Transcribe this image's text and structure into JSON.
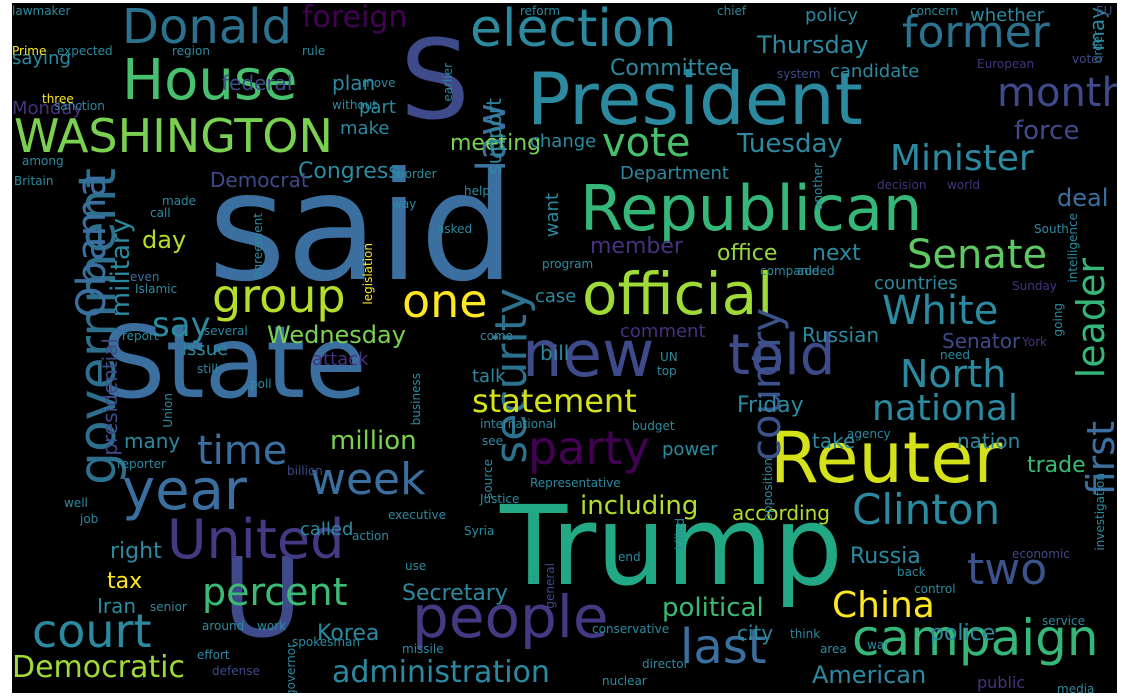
{
  "wordcloud": {
    "colors": {
      "background": "#000000",
      "purple": "#46327e",
      "deep_purple": "#440154",
      "indigo": "#3b528b",
      "blue": "#365c8d",
      "steel": "#2c728e",
      "teal": "#21918c",
      "cyan": "#1fa187",
      "green": "#3bbb75",
      "lime": "#5ec962",
      "light_green": "#95d840",
      "yellow": "#fde725"
    },
    "words": [
      {
        "text": "said",
        "color": "#3b6fa0"
      },
      {
        "text": "Trump",
        "color": "#22a884"
      },
      {
        "text": "State",
        "color": "#3b6fa0"
      },
      {
        "text": "President",
        "color": "#2c8aa0"
      },
      {
        "text": "Republican",
        "color": "#35b779"
      },
      {
        "text": "Reuter",
        "color": "#d5e21a"
      },
      {
        "text": "S",
        "color": "#3e4a89"
      },
      {
        "text": "U",
        "color": "#3e4a89"
      },
      {
        "text": "official",
        "color": "#a0da39"
      },
      {
        "text": "government",
        "color": "#2d708e"
      },
      {
        "text": "new",
        "color": "#3e4a89"
      },
      {
        "text": "year",
        "color": "#3b6fa0"
      },
      {
        "text": "people",
        "color": "#443983"
      },
      {
        "text": "United",
        "color": "#443983"
      },
      {
        "text": "election",
        "color": "#2d8a9e"
      },
      {
        "text": "House",
        "color": "#48c16e"
      },
      {
        "text": "WASHINGTON",
        "color": "#7ad151"
      },
      {
        "text": "campaign",
        "color": "#35b779"
      },
      {
        "text": "told",
        "color": "#3e4a89"
      },
      {
        "text": "Donald",
        "color": "#2c728e"
      },
      {
        "text": "former",
        "color": "#2c728e"
      },
      {
        "text": "group",
        "color": "#b5de2b"
      },
      {
        "text": "one",
        "color": "#fde725"
      },
      {
        "text": "security",
        "color": "#2c728e"
      },
      {
        "text": "last",
        "color": "#3b6fa0"
      },
      {
        "text": "week",
        "color": "#3b6fa0"
      },
      {
        "text": "court",
        "color": "#2c8aa0"
      },
      {
        "text": "party",
        "color": "#440154"
      },
      {
        "text": "Clinton",
        "color": "#2c8aa0"
      },
      {
        "text": "country",
        "color": "#3b528b"
      },
      {
        "text": "Senate",
        "color": "#5ec962"
      },
      {
        "text": "White",
        "color": "#2c8aa0"
      },
      {
        "text": "North",
        "color": "#2c8aa0"
      },
      {
        "text": "Minister",
        "color": "#2c8aa0"
      },
      {
        "text": "leader",
        "color": "#35b779"
      },
      {
        "text": "first",
        "color": "#3b6fa0"
      },
      {
        "text": "two",
        "color": "#3b528b"
      },
      {
        "text": "time",
        "color": "#3b6fa0"
      },
      {
        "text": "percent",
        "color": "#3bbb75"
      },
      {
        "text": "national",
        "color": "#2c8aa0"
      },
      {
        "text": "statement",
        "color": "#d5e21a"
      },
      {
        "text": "vote",
        "color": "#48c16e"
      },
      {
        "text": "Obama",
        "color": "#3b6fa0"
      },
      {
        "text": "month",
        "color": "#3e4a89"
      },
      {
        "text": "law",
        "color": "#3b6fa0"
      },
      {
        "text": "say",
        "color": "#2c8aa0"
      },
      {
        "text": "China",
        "color": "#fde725"
      },
      {
        "text": "administration",
        "color": "#2c8aa0"
      },
      {
        "text": "Democratic",
        "color": "#a0da39"
      },
      {
        "text": "Tuesday",
        "color": "#2c8aa0"
      },
      {
        "text": "foreign",
        "color": "#440154"
      },
      {
        "text": "Wednesday",
        "color": "#7ad151"
      },
      {
        "text": "million",
        "color": "#7ad151"
      },
      {
        "text": "political",
        "color": "#3bbb75"
      },
      {
        "text": "including",
        "color": "#b5de2b"
      },
      {
        "text": "Friday",
        "color": "#2c8aa0"
      },
      {
        "text": "Thursday",
        "color": "#2c8aa0"
      },
      {
        "text": "office",
        "color": "#95d840"
      },
      {
        "text": "next",
        "color": "#2c8aa0"
      },
      {
        "text": "countries",
        "color": "#2c8aa0"
      },
      {
        "text": "Russian",
        "color": "#2c8aa0"
      },
      {
        "text": "Senator",
        "color": "#3e4a89"
      },
      {
        "text": "nation",
        "color": "#2c8aa0"
      },
      {
        "text": "trade",
        "color": "#3bbb75"
      },
      {
        "text": "deal",
        "color": "#3b6fa0"
      },
      {
        "text": "force",
        "color": "#3e4a89"
      },
      {
        "text": "Russia",
        "color": "#2c8aa0"
      },
      {
        "text": "police",
        "color": "#2c8aa0"
      },
      {
        "text": "city",
        "color": "#2c8aa0"
      },
      {
        "text": "American",
        "color": "#2c8aa0"
      },
      {
        "text": "right",
        "color": "#2c8aa0"
      },
      {
        "text": "tax",
        "color": "#fde725"
      },
      {
        "text": "Iran",
        "color": "#2c8aa0"
      },
      {
        "text": "Korea",
        "color": "#2c8aa0"
      },
      {
        "text": "Secretary",
        "color": "#2c8aa0"
      },
      {
        "text": "military",
        "color": "#2c8aa0"
      },
      {
        "text": "day",
        "color": "#b5de2b"
      },
      {
        "text": "presidential",
        "color": "#3e4a89"
      },
      {
        "text": "many",
        "color": "#2c8aa0"
      },
      {
        "text": "called",
        "color": "#2c8aa0"
      },
      {
        "text": "according",
        "color": "#b5de2b"
      },
      {
        "text": "take",
        "color": "#2c8aa0"
      },
      {
        "text": "bill",
        "color": "#2c8aa0"
      },
      {
        "text": "case",
        "color": "#2c8aa0"
      },
      {
        "text": "member",
        "color": "#46327e"
      },
      {
        "text": "Congress",
        "color": "#2c8aa0"
      },
      {
        "text": "meeting",
        "color": "#7ad151"
      },
      {
        "text": "Democrat",
        "color": "#3e4a89"
      },
      {
        "text": "Committee",
        "color": "#2c8aa0"
      },
      {
        "text": "policy",
        "color": "#2c8aa0"
      },
      {
        "text": "candidate",
        "color": "#2c8aa0"
      },
      {
        "text": "whether",
        "color": "#2c8aa0"
      },
      {
        "text": "may",
        "color": "#2c8aa0"
      },
      {
        "text": "support",
        "color": "#2c8aa0"
      },
      {
        "text": "change",
        "color": "#2c8aa0"
      },
      {
        "text": "Department",
        "color": "#2c8aa0"
      },
      {
        "text": "want",
        "color": "#2c8aa0"
      },
      {
        "text": "plan",
        "color": "#2c8aa0"
      },
      {
        "text": "part",
        "color": "#2c8aa0"
      },
      {
        "text": "make",
        "color": "#2c8aa0"
      },
      {
        "text": "federal",
        "color": "#3e4a89"
      },
      {
        "text": "saying",
        "color": "#2c8aa0"
      },
      {
        "text": "Monday",
        "color": "#46327e"
      },
      {
        "text": "issue",
        "color": "#2c8aa0"
      },
      {
        "text": "attack",
        "color": "#46327e"
      },
      {
        "text": "comment",
        "color": "#46327e"
      },
      {
        "text": "talk",
        "color": "#2c8aa0"
      },
      {
        "text": "power",
        "color": "#2c8aa0"
      },
      {
        "text": "public",
        "color": "#46327e"
      },
      {
        "text": "lawmaker",
        "color": "#2c8aa0"
      },
      {
        "text": "reform",
        "color": "#2c8aa0"
      },
      {
        "text": "chief",
        "color": "#2c8aa0"
      },
      {
        "text": "concern",
        "color": "#2c8aa0"
      },
      {
        "text": "EU",
        "color": "#3e4a89"
      },
      {
        "text": "order",
        "color": "#2c8aa0"
      },
      {
        "text": "voter",
        "color": "#3e4a89"
      },
      {
        "text": "European",
        "color": "#46327e"
      },
      {
        "text": "Prime",
        "color": "#fde725"
      },
      {
        "text": "expected",
        "color": "#2c8aa0"
      },
      {
        "text": "region",
        "color": "#2c8aa0"
      },
      {
        "text": "rule",
        "color": "#2c8aa0"
      },
      {
        "text": "three",
        "color": "#fde725"
      },
      {
        "text": "sanction",
        "color": "#2c8aa0"
      },
      {
        "text": "without",
        "color": "#2c8aa0"
      },
      {
        "text": "move",
        "color": "#2c8aa0"
      },
      {
        "text": "earlier",
        "color": "#2c8aa0"
      },
      {
        "text": "system",
        "color": "#3e4a89"
      },
      {
        "text": "border",
        "color": "#2c8aa0"
      },
      {
        "text": "among",
        "color": "#2c8aa0"
      },
      {
        "text": "Britain",
        "color": "#2c8aa0"
      },
      {
        "text": "made",
        "color": "#2c8aa0"
      },
      {
        "text": "call",
        "color": "#2c8aa0"
      },
      {
        "text": "even",
        "color": "#3b6fa0"
      },
      {
        "text": "Islamic",
        "color": "#2c8aa0"
      },
      {
        "text": "asked",
        "color": "#2c8aa0"
      },
      {
        "text": "agreement",
        "color": "#2c8aa0"
      },
      {
        "text": "legislation",
        "color": "#fde725"
      },
      {
        "text": "way",
        "color": "#2c8aa0"
      },
      {
        "text": "help",
        "color": "#2c8aa0"
      },
      {
        "text": "another",
        "color": "#2c8aa0"
      },
      {
        "text": "decision",
        "color": "#46327e"
      },
      {
        "text": "world",
        "color": "#46327e"
      },
      {
        "text": "South",
        "color": "#2c8aa0"
      },
      {
        "text": "Sunday",
        "color": "#46327e"
      },
      {
        "text": "program",
        "color": "#2c8aa0"
      },
      {
        "text": "companie",
        "color": "#2c8aa0"
      },
      {
        "text": "added",
        "color": "#2c8aa0"
      },
      {
        "text": "going",
        "color": "#2c8aa0"
      },
      {
        "text": "intelligence",
        "color": "#2c8aa0"
      },
      {
        "text": "York",
        "color": "#46327e"
      },
      {
        "text": "need",
        "color": "#2c8aa0"
      },
      {
        "text": "report",
        "color": "#2c8aa0"
      },
      {
        "text": "several",
        "color": "#2c8aa0"
      },
      {
        "text": "still",
        "color": "#2c8aa0"
      },
      {
        "text": "come",
        "color": "#2c8aa0"
      },
      {
        "text": "UN",
        "color": "#2c8aa0"
      },
      {
        "text": "top",
        "color": "#2c8aa0"
      },
      {
        "text": "poll",
        "color": "#2c8aa0"
      },
      {
        "text": "business",
        "color": "#2c8aa0"
      },
      {
        "text": "international",
        "color": "#2c8aa0"
      },
      {
        "text": "budget",
        "color": "#2c8aa0"
      },
      {
        "text": "agency",
        "color": "#2c8aa0"
      },
      {
        "text": "reporter",
        "color": "#2c8aa0"
      },
      {
        "text": "billion",
        "color": "#3e4a89"
      },
      {
        "text": "Union",
        "color": "#2c8aa0"
      },
      {
        "text": "see",
        "color": "#2c8aa0"
      },
      {
        "text": "Representative",
        "color": "#2c8aa0"
      },
      {
        "text": "opposition",
        "color": "#2c8aa0"
      },
      {
        "text": "well",
        "color": "#2c8aa0"
      },
      {
        "text": "job",
        "color": "#2c8aa0"
      },
      {
        "text": "action",
        "color": "#2c8aa0"
      },
      {
        "text": "executive",
        "color": "#2c8aa0"
      },
      {
        "text": "Justice",
        "color": "#2c8aa0"
      },
      {
        "text": "source",
        "color": "#2c8aa0"
      },
      {
        "text": "Syria",
        "color": "#2c8aa0"
      },
      {
        "text": "killed",
        "color": "#2c8aa0"
      },
      {
        "text": "economic",
        "color": "#3e4a89"
      },
      {
        "text": "investigation",
        "color": "#2c8aa0"
      },
      {
        "text": "back",
        "color": "#2c8aa0"
      },
      {
        "text": "control",
        "color": "#2c8aa0"
      },
      {
        "text": "senior",
        "color": "#2c8aa0"
      },
      {
        "text": "use",
        "color": "#2c8aa0"
      },
      {
        "text": "end",
        "color": "#2c8aa0"
      },
      {
        "text": "t",
        "color": "#2c8aa0"
      },
      {
        "text": "general",
        "color": "#3e4a89"
      },
      {
        "text": "war",
        "color": "#2c8aa0"
      },
      {
        "text": "area",
        "color": "#2c8aa0"
      },
      {
        "text": "think",
        "color": "#2c8aa0"
      },
      {
        "text": "service",
        "color": "#2c8aa0"
      },
      {
        "text": "around",
        "color": "#2c8aa0"
      },
      {
        "text": "work",
        "color": "#2c8aa0"
      },
      {
        "text": "effort",
        "color": "#2c8aa0"
      },
      {
        "text": "defense",
        "color": "#3e4a89"
      },
      {
        "text": "governor",
        "color": "#2c8aa0"
      },
      {
        "text": "spokesman",
        "color": "#2c8aa0"
      },
      {
        "text": "missile",
        "color": "#2c8aa0"
      },
      {
        "text": "conservative",
        "color": "#2c8aa0"
      },
      {
        "text": "director",
        "color": "#2c8aa0"
      },
      {
        "text": "nuclear",
        "color": "#2c8aa0"
      },
      {
        "text": "media",
        "color": "#2c8aa0"
      }
    ]
  }
}
